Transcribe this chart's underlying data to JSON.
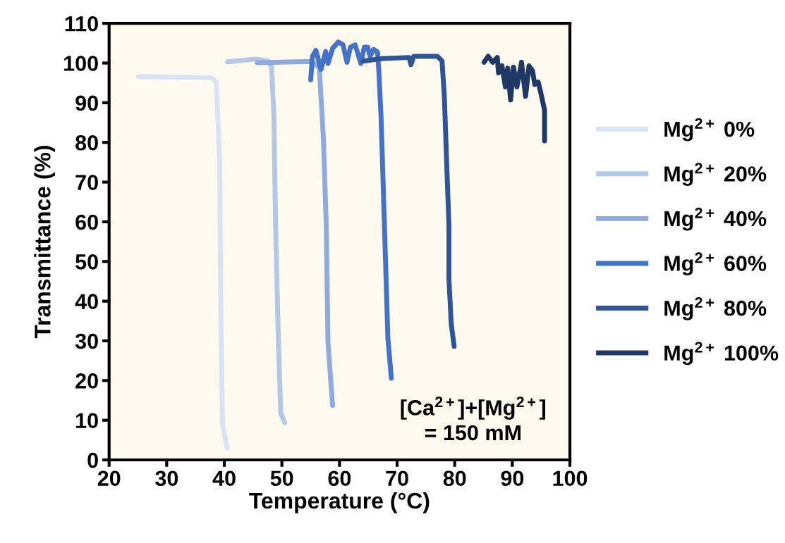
{
  "chart_data": {
    "type": "line",
    "xlabel": "Temperature (°C)",
    "ylabel": "Transmittance (%)",
    "xlim": [
      20,
      100
    ],
    "xticks": [
      20,
      30,
      40,
      50,
      60,
      70,
      80,
      90,
      100
    ],
    "ylim": [
      0,
      110
    ],
    "yticks": [
      0,
      10,
      20,
      30,
      40,
      50,
      60,
      70,
      80,
      90,
      100,
      110
    ],
    "grid": false,
    "legend": "right",
    "marker": "none",
    "line_style": "solid",
    "annotations": [
      "[Ca$^{2+}$]+[Mg$^{2+}$]\n= 150 mM"
    ],
    "series": [
      {
        "name": "Mg$^{2+}$ 0%",
        "color": "#dae3f3",
        "x": [
          25.1,
          37.8,
          38.6,
          39.2,
          39.4,
          39.7,
          40.5
        ],
        "values": [
          96.6,
          96.3,
          95.2,
          75.0,
          35.5,
          8.9,
          3.0
        ]
      },
      {
        "name": "Mg$^{2+}$ 20%",
        "color": "#b4c7e7",
        "x": [
          40.6,
          45.5,
          47.6,
          48.2,
          48.6,
          48.9,
          49.4,
          49.8,
          50.5
        ],
        "values": [
          100.3,
          101.0,
          100.5,
          99.0,
          86.9,
          59.1,
          29.5,
          11.8,
          9.4
        ]
      },
      {
        "name": "Mg$^{2+}$ 40%",
        "color": "#8faadc",
        "x": [
          45.7,
          55.3,
          56.5,
          57.2,
          57.7,
          58.0,
          58.8
        ],
        "values": [
          100.1,
          100.4,
          98.7,
          81.0,
          59.1,
          29.5,
          13.7
        ]
      },
      {
        "name": "Mg$^{2+}$ 60%",
        "color": "#4472c4",
        "x": [
          55.0,
          55.3,
          55.9,
          56.8,
          57.6,
          58.0,
          58.8,
          59.8,
          60.6,
          61.3,
          61.9,
          62.7,
          63.1,
          63.7,
          64.3,
          64.9,
          65.3,
          65.9,
          66.6,
          66.8,
          67.2,
          67.8,
          68.4,
          69.0
        ],
        "values": [
          95.8,
          101.7,
          103.2,
          98.4,
          102.9,
          99.9,
          103.7,
          105.3,
          104.6,
          100.2,
          104.0,
          104.6,
          102.8,
          99.9,
          104.0,
          104.0,
          101.7,
          103.4,
          102.8,
          98.7,
          86.9,
          59.1,
          30.7,
          20.6
        ]
      },
      {
        "name": "Mg$^{2+}$ 80%",
        "color": "#2f5597",
        "x": [
          64.1,
          67.2,
          72.1,
          72.4,
          72.9,
          77.0,
          77.8,
          78.2,
          78.6,
          79.0,
          79.0,
          79.4,
          79.9
        ],
        "values": [
          100.5,
          101.1,
          101.4,
          99.6,
          101.7,
          101.7,
          100.5,
          91.6,
          75.0,
          59.1,
          45.5,
          34.2,
          28.6
        ]
      },
      {
        "name": "Mg$^{2+}$ 100%",
        "color": "#203864",
        "x": [
          85.1,
          85.8,
          86.6,
          87.4,
          87.6,
          88.2,
          88.8,
          89.2,
          89.7,
          90.2,
          90.8,
          91.6,
          92.3,
          92.9,
          93.5,
          93.9,
          94.5,
          94.9,
          95.6,
          95.6
        ],
        "values": [
          100.2,
          101.7,
          100.2,
          101.4,
          97.5,
          99.3,
          94.0,
          98.7,
          90.7,
          99.0,
          94.0,
          100.2,
          91.6,
          99.3,
          98.1,
          94.6,
          95.2,
          92.8,
          88.1,
          80.4
        ]
      }
    ]
  }
}
